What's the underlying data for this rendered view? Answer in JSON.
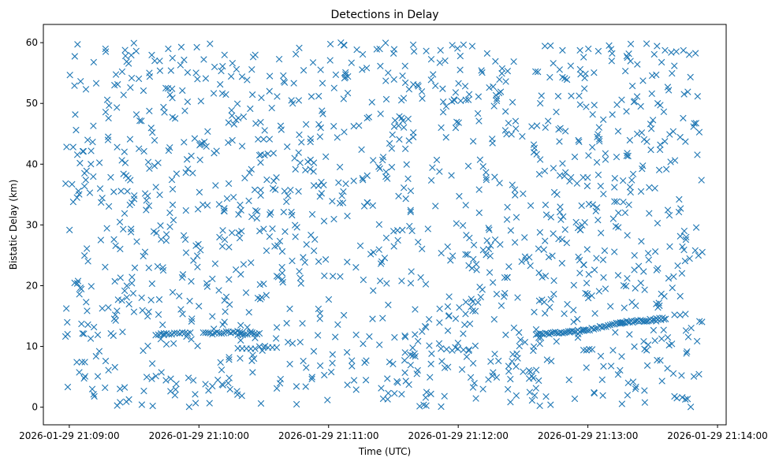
{
  "chart_data": {
    "type": "scatter",
    "title": "Detections in Delay",
    "xlabel": "Time (UTC)",
    "ylabel": "Bistatic Delay (km)",
    "marker": "x",
    "marker_color": "#1f77b4",
    "grid": false,
    "legend": "none",
    "xlim": [
      "2026-01-29 21:08:48",
      "2026-01-29 21:14:04"
    ],
    "ylim": [
      -2.9,
      63
    ],
    "x_ticks": [
      "2026-01-29 21:09:00",
      "2026-01-29 21:10:00",
      "2026-01-29 21:11:00",
      "2026-01-29 21:12:00",
      "2026-01-29 21:13:00",
      "2026-01-29 21:14:00"
    ],
    "y_ticks": [
      "0",
      "10",
      "20",
      "30",
      "40",
      "50",
      "60"
    ],
    "data_range": {
      "x": [
        "2026-01-29 21:08:58",
        "2026-01-29 21:13:53"
      ],
      "y": [
        0,
        60
      ]
    },
    "point_count": 1500,
    "tracks": [
      {
        "x": [
          "2026-01-29 21:09:40",
          "2026-01-29 21:09:56"
        ],
        "y": [
          12.0,
          12.2
        ],
        "points": 14
      },
      {
        "x": [
          "2026-01-29 21:10:02",
          "2026-01-29 21:10:20"
        ],
        "y": [
          12.1,
          12.4
        ],
        "points": 18
      },
      {
        "x": [
          "2026-01-29 21:10:18",
          "2026-01-29 21:10:28"
        ],
        "y": [
          12.0,
          12.2
        ],
        "points": 10
      },
      {
        "x": [
          "2026-01-29 21:10:18",
          "2026-01-29 21:10:36"
        ],
        "y": [
          9.6,
          10.0
        ],
        "points": 10
      },
      {
        "x": [
          "2026-01-29 21:12:36",
          "2026-01-29 21:12:58"
        ],
        "y": [
          12.0,
          12.6
        ],
        "points": 26
      },
      {
        "x": [
          "2026-01-29 21:12:58",
          "2026-01-29 21:13:16"
        ],
        "y": [
          12.6,
          13.9
        ],
        "points": 20
      },
      {
        "x": [
          "2026-01-29 21:13:15",
          "2026-01-29 21:13:36"
        ],
        "y": [
          13.9,
          14.6
        ],
        "points": 30
      },
      {
        "x": [
          "2026-01-29 21:11:52",
          "2026-01-29 21:12:05"
        ],
        "y": [
          9.5,
          9.5
        ],
        "points": 6
      },
      {
        "x": [
          "2026-01-29 21:12:58",
          "2026-01-29 21:13:02"
        ],
        "y": [
          9.5,
          9.5
        ],
        "points": 4
      }
    ]
  }
}
